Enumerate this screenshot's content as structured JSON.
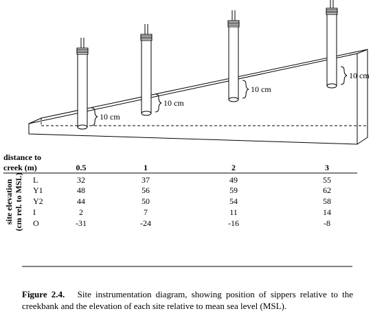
{
  "diagram": {
    "depth_labels": [
      "10 cm",
      "10 cm",
      "10 cm",
      "10 cm"
    ]
  },
  "table": {
    "corner": [
      "distance to",
      "creek (m)"
    ],
    "columns": [
      "0.5",
      "1",
      "2",
      "3"
    ],
    "row_axis_label": [
      "site elevation",
      "(cm rel. to MSL)"
    ],
    "rows": [
      {
        "label": "L",
        "values": [
          32,
          37,
          49,
          55
        ]
      },
      {
        "label": "Y1",
        "values": [
          48,
          56,
          59,
          62
        ]
      },
      {
        "label": "Y2",
        "values": [
          44,
          50,
          54,
          58
        ]
      },
      {
        "label": "I",
        "values": [
          2,
          7,
          11,
          14
        ]
      },
      {
        "label": "O",
        "values": [
          -31,
          -24,
          -16,
          -8
        ]
      }
    ]
  },
  "caption": {
    "label": "Figure 2.4",
    "text": "Site instrumentation diagram, showing position of sippers relative to the creekbank and the elevation of each site relative to mean sea level (MSL)."
  }
}
